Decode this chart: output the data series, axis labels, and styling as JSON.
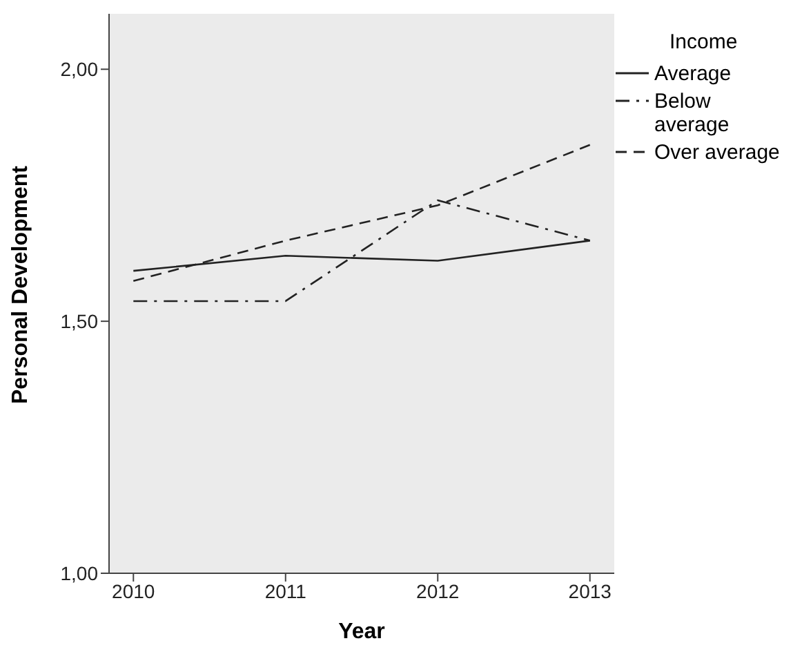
{
  "chart_data": {
    "type": "line",
    "xlabel": "Year",
    "ylabel": "Personal Development",
    "legend_title": "Income",
    "legend": "top right",
    "grid": false,
    "marker": "none",
    "x": [
      2010,
      2011,
      2012,
      2013
    ],
    "xlim": [
      2009.84,
      2013.16
    ],
    "xticks": [
      2010,
      2011,
      2012,
      2013
    ],
    "ylim": [
      1,
      2.11
    ],
    "yticks": [
      {
        "value": 1,
        "label": "1,00"
      },
      {
        "value": 1.5,
        "label": "1,50"
      },
      {
        "value": 2,
        "label": "2,00"
      }
    ],
    "series": [
      {
        "name": "Average",
        "color": "#222222",
        "line_style": "solid",
        "values": [
          1.6,
          1.63,
          1.62,
          1.66
        ]
      },
      {
        "name": "Below average",
        "color": "#222222",
        "line_style": "dashdot",
        "values": [
          1.54,
          1.54,
          1.74,
          1.66
        ]
      },
      {
        "name": "Over average",
        "color": "#222222",
        "line_style": "dashed",
        "values": [
          1.58,
          1.66,
          1.73,
          1.85
        ]
      }
    ]
  }
}
